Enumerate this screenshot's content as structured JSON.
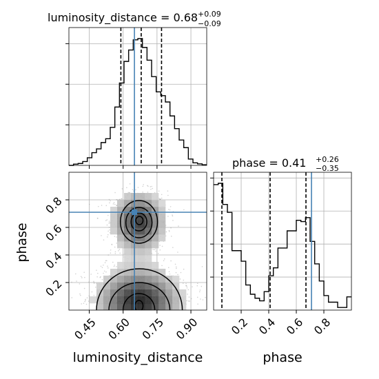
{
  "chart_data": [
    {
      "type": "histogram",
      "panel": "top-left",
      "title_param": "luminosity_distance",
      "title_value": "0.68",
      "title_plus": "+0.09",
      "title_minus": "−0.09",
      "xlim": [
        0.36,
        0.97
      ],
      "ylim": [
        0,
        1.0
      ],
      "grid": true,
      "bin_edges": [
        0.36,
        0.3803,
        0.4007,
        0.421,
        0.4413,
        0.4617,
        0.482,
        0.5023,
        0.5227,
        0.543,
        0.5633,
        0.5837,
        0.604,
        0.6243,
        0.6447,
        0.665,
        0.6853,
        0.7057,
        0.726,
        0.7463,
        0.7667,
        0.787,
        0.8073,
        0.8277,
        0.848,
        0.8683,
        0.8887,
        0.909,
        0.9293,
        0.9497,
        0.97
      ],
      "counts": [
        0.0,
        0.01,
        0.015,
        0.03,
        0.06,
        0.1,
        0.13,
        0.18,
        0.21,
        0.3,
        0.46,
        0.65,
        0.82,
        0.91,
        0.99,
        1.0,
        0.93,
        0.83,
        0.7,
        0.58,
        0.55,
        0.5,
        0.39,
        0.29,
        0.2,
        0.14,
        0.05,
        0.02,
        0.012,
        0.005
      ],
      "quantile_lines": [
        0.59,
        0.68,
        0.77
      ],
      "truth": 0.65,
      "yticks_no_labels": [
        0.32,
        0.64,
        0.96
      ]
    },
    {
      "type": "histogram",
      "panel": "bottom-right",
      "title_param": "phase",
      "title_value": "0.41",
      "title_plus": "+0.26",
      "title_minus": "−0.35",
      "xlim": [
        0.0,
        1.0
      ],
      "xticks": [
        0.2,
        0.4,
        0.6,
        0.8
      ],
      "xtick_labels": [
        "0.2",
        "0.4",
        "0.6",
        "0.8"
      ],
      "xlabel": "phase",
      "ylim": [
        0,
        1.0
      ],
      "grid": true,
      "bin_edges": [
        0.0,
        0.0333,
        0.0667,
        0.1,
        0.1333,
        0.1667,
        0.2,
        0.2333,
        0.2667,
        0.3,
        0.3333,
        0.3667,
        0.4,
        0.4333,
        0.4667,
        0.5,
        0.5333,
        0.5667,
        0.6,
        0.6333,
        0.6667,
        0.7,
        0.7333,
        0.7667,
        0.8,
        0.8333,
        0.8667,
        0.9,
        0.9333,
        0.9667,
        1.0
      ],
      "counts": [
        0.95,
        0.96,
        0.8,
        0.74,
        0.45,
        0.45,
        0.37,
        0.19,
        0.12,
        0.09,
        0.07,
        0.14,
        0.26,
        0.32,
        0.47,
        0.47,
        0.6,
        0.6,
        0.68,
        0.67,
        0.7,
        0.52,
        0.35,
        0.22,
        0.11,
        0.06,
        0.06,
        0.02,
        0.02,
        0.1
      ],
      "quantile_lines": [
        0.06,
        0.41,
        0.67
      ],
      "truth": 0.71
    },
    {
      "type": "2d-density",
      "panel": "bottom-left",
      "x": "luminosity_distance",
      "y": "phase",
      "xlim": [
        0.36,
        0.97
      ],
      "ylim": [
        0.0,
        1.0
      ],
      "xticks": [
        0.45,
        0.6,
        0.75,
        0.9
      ],
      "xtick_labels": [
        "0.45",
        "0.60",
        "0.75",
        "0.90"
      ],
      "yticks": [
        0.2,
        0.4,
        0.6,
        0.8
      ],
      "ytick_labels": [
        "0.2",
        "0.4",
        "0.6",
        "0.8"
      ],
      "xlabel": "luminosity_distance",
      "ylabel": "phase",
      "grid": true,
      "truth": [
        0.65,
        0.71
      ],
      "modes": [
        {
          "cx": 0.67,
          "cy": 0.64,
          "rx": 0.07,
          "ry": 0.13,
          "peak": 0.9
        },
        {
          "cx": 0.67,
          "cy": 0.06,
          "rx": 0.11,
          "ry": 0.15,
          "peak": 1.0
        }
      ],
      "contours_upper": [
        {
          "cx": 0.67,
          "cy": 0.64,
          "rx": 0.082,
          "ry": 0.155
        },
        {
          "cx": 0.67,
          "cy": 0.635,
          "rx": 0.058,
          "ry": 0.11
        },
        {
          "cx": 0.67,
          "cy": 0.64,
          "rx": 0.035,
          "ry": 0.065
        },
        {
          "cx": 0.672,
          "cy": 0.65,
          "rx": 0.016,
          "ry": 0.03
        }
      ],
      "contours_lower": [
        {
          "cx": 0.672,
          "cy": 0.0,
          "rx": 0.19,
          "ry": 0.3
        },
        {
          "cx": 0.672,
          "cy": 0.0,
          "rx": 0.135,
          "ry": 0.2
        },
        {
          "cx": 0.67,
          "cy": 0.0,
          "rx": 0.07,
          "ry": 0.12
        },
        {
          "cx": 0.67,
          "cy": 0.03,
          "rx": 0.018,
          "ry": 0.04
        }
      ]
    }
  ],
  "colors": {
    "truth": "#4682b4",
    "line": "#000000",
    "grid": "#b0b0b0",
    "scatter": "#999999"
  }
}
